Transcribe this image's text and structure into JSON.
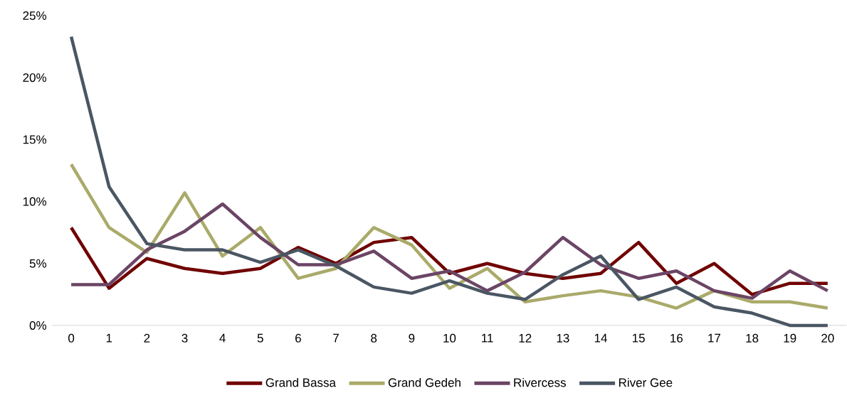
{
  "chart_data": {
    "type": "line",
    "categories": [
      "0",
      "1",
      "2",
      "3",
      "4",
      "5",
      "6",
      "7",
      "8",
      "9",
      "10",
      "11",
      "12",
      "13",
      "14",
      "15",
      "16",
      "17",
      "18",
      "19",
      "20"
    ],
    "series": [
      {
        "name": "Grand Bassa",
        "color": "#700000",
        "values": [
          7.9,
          3.0,
          5.4,
          4.6,
          4.2,
          4.6,
          6.3,
          5.0,
          6.7,
          7.1,
          4.2,
          5.0,
          4.2,
          3.8,
          4.2,
          6.7,
          3.4,
          5.0,
          2.5,
          3.4,
          3.4
        ]
      },
      {
        "name": "Grand Gedeh",
        "color": "#aaaa6a",
        "values": [
          13.0,
          7.9,
          5.9,
          10.7,
          5.6,
          7.9,
          3.8,
          4.6,
          7.9,
          6.5,
          3.0,
          4.6,
          1.9,
          2.4,
          2.8,
          2.3,
          1.4,
          2.8,
          1.9,
          1.9,
          1.4
        ]
      },
      {
        "name": "Rivercess",
        "color": "#6b4565",
        "values": [
          3.3,
          3.3,
          6.1,
          7.6,
          9.8,
          7.1,
          4.9,
          4.9,
          6.0,
          3.8,
          4.4,
          2.8,
          4.3,
          7.1,
          4.9,
          3.8,
          4.4,
          2.8,
          2.2,
          4.4,
          2.8
        ]
      },
      {
        "name": "River Gee",
        "color": "#4a5663",
        "values": [
          23.3,
          11.2,
          6.6,
          6.1,
          6.1,
          5.1,
          6.1,
          4.8,
          3.1,
          2.6,
          3.6,
          2.6,
          2.1,
          4.1,
          5.6,
          2.1,
          3.1,
          1.5,
          1.0,
          0,
          0
        ]
      }
    ],
    "ylim": [
      0,
      25
    ],
    "yticks": [
      {
        "value": 0,
        "label": "0%"
      },
      {
        "value": 5,
        "label": "5%"
      },
      {
        "value": 10,
        "label": "10%"
      },
      {
        "value": 15,
        "label": "15%"
      },
      {
        "value": 20,
        "label": "20%"
      },
      {
        "value": 25,
        "label": "25%"
      }
    ],
    "legend": "bottom",
    "marker": "none",
    "line_style": "solid"
  }
}
